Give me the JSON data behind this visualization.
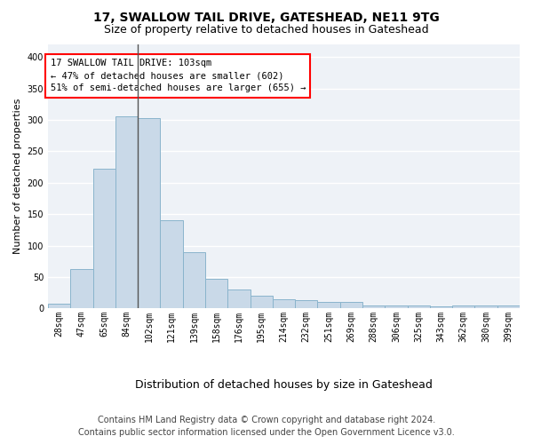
{
  "title1": "17, SWALLOW TAIL DRIVE, GATESHEAD, NE11 9TG",
  "title2": "Size of property relative to detached houses in Gateshead",
  "xlabel": "Distribution of detached houses by size in Gateshead",
  "ylabel": "Number of detached properties",
  "categories": [
    "28sqm",
    "47sqm",
    "65sqm",
    "84sqm",
    "102sqm",
    "121sqm",
    "139sqm",
    "158sqm",
    "176sqm",
    "195sqm",
    "214sqm",
    "232sqm",
    "251sqm",
    "269sqm",
    "288sqm",
    "306sqm",
    "325sqm",
    "343sqm",
    "362sqm",
    "380sqm",
    "399sqm"
  ],
  "values": [
    8,
    63,
    222,
    305,
    303,
    140,
    90,
    47,
    30,
    20,
    14,
    13,
    11,
    10,
    4,
    5,
    4,
    3,
    4,
    4,
    4
  ],
  "bar_color": "#c9d9e8",
  "bar_edge_color": "#8ab4cc",
  "vline_color": "#555555",
  "annotation_text": "17 SWALLOW TAIL DRIVE: 103sqm\n← 47% of detached houses are smaller (602)\n51% of semi-detached houses are larger (655) →",
  "annotation_box_color": "white",
  "annotation_box_edge_color": "red",
  "footer_line1": "Contains HM Land Registry data © Crown copyright and database right 2024.",
  "footer_line2": "Contains public sector information licensed under the Open Government Licence v3.0.",
  "ylim": [
    0,
    420
  ],
  "yticks": [
    0,
    50,
    100,
    150,
    200,
    250,
    300,
    350,
    400
  ],
  "background_color": "#ffffff",
  "plot_bg_color": "#eef2f7",
  "grid_color": "#ffffff",
  "title1_fontsize": 10,
  "title2_fontsize": 9,
  "xlabel_fontsize": 9,
  "ylabel_fontsize": 8,
  "tick_fontsize": 7,
  "annotation_fontsize": 7.5,
  "footer_fontsize": 7
}
